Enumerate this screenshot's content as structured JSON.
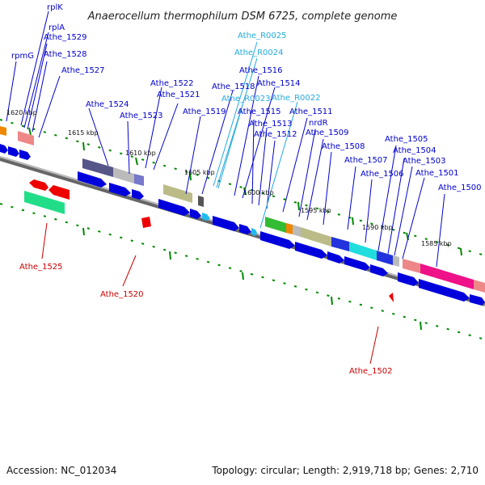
{
  "title": "Anaerocellum thermophilum DSM 6725, complete genome",
  "footer": {
    "accession": "Accession: NC_012034",
    "summary": "Topology: circular; Length: 2,919,718 bp; Genes: 2,710"
  },
  "colors": {
    "gene_label": "#0000cc",
    "rna_label": "#22aadd",
    "reverse_label": "#cc0000",
    "forward_arrow": "#0000dd",
    "reverse_arrow": "#ee0000",
    "tick": "#008800",
    "backbone": "#888888"
  },
  "scale_labels": [
    "1620 kbp",
    "1615 kbp",
    "1610 kbp",
    "1605 kbp",
    "1600 kbp",
    "1595 kbp",
    "1590 kbp",
    "1585 kbp"
  ],
  "top_labels": [
    {
      "text": "rplK",
      "type": "gene"
    },
    {
      "text": "rplA",
      "type": "gene"
    },
    {
      "text": "Athe_1529",
      "type": "gene"
    },
    {
      "text": "rpmG",
      "type": "gene"
    },
    {
      "text": "Athe_1528",
      "type": "gene"
    },
    {
      "text": "Athe_1527",
      "type": "gene"
    },
    {
      "text": "Athe_1524",
      "type": "gene"
    },
    {
      "text": "Athe_1523",
      "type": "gene"
    },
    {
      "text": "Athe_1522",
      "type": "gene"
    },
    {
      "text": "Athe_1521",
      "type": "gene"
    },
    {
      "text": "Athe_1519",
      "type": "gene"
    },
    {
      "text": "Athe_1518",
      "type": "gene"
    },
    {
      "text": "Athe_R0025",
      "type": "rna"
    },
    {
      "text": "Athe_R0024",
      "type": "rna"
    },
    {
      "text": "Athe_1516",
      "type": "gene"
    },
    {
      "text": "Athe_1514",
      "type": "gene"
    },
    {
      "text": "Athe_R0023",
      "type": "rna"
    },
    {
      "text": "Athe_R0022",
      "type": "rna"
    },
    {
      "text": "Athe_1515",
      "type": "gene"
    },
    {
      "text": "Athe_1513",
      "type": "gene"
    },
    {
      "text": "Athe_1512",
      "type": "gene"
    },
    {
      "text": "Athe_1511",
      "type": "gene"
    },
    {
      "text": "nrdR",
      "type": "gene"
    },
    {
      "text": "Athe_1509",
      "type": "gene"
    },
    {
      "text": "Athe_1508",
      "type": "gene"
    },
    {
      "text": "Athe_1507",
      "type": "gene"
    },
    {
      "text": "Athe_1506",
      "type": "gene"
    },
    {
      "text": "Athe_1505",
      "type": "gene"
    },
    {
      "text": "Athe_1504",
      "type": "gene"
    },
    {
      "text": "Athe_1503",
      "type": "gene"
    },
    {
      "text": "Athe_1501",
      "type": "gene"
    },
    {
      "text": "Athe_1500",
      "type": "gene"
    }
  ],
  "bottom_labels": [
    {
      "text": "Athe_1525",
      "type": "reverse"
    },
    {
      "text": "Athe_1520",
      "type": "reverse"
    },
    {
      "text": "Athe_1502",
      "type": "reverse"
    }
  ]
}
